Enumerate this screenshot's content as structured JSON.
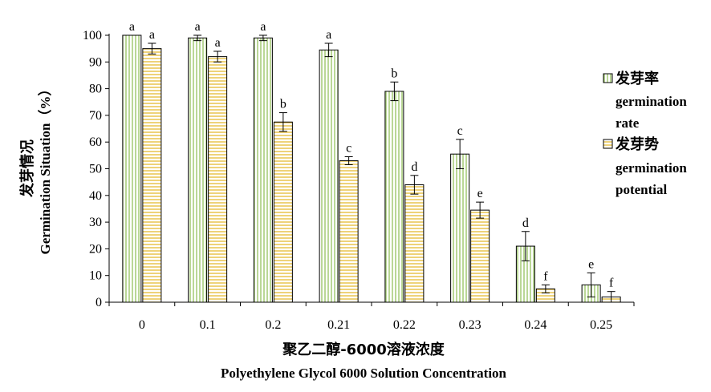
{
  "chart_data": {
    "type": "bar",
    "categories": [
      "0",
      "0.1",
      "0.2",
      "0.21",
      "0.22",
      "0.23",
      "0.24",
      "0.25"
    ],
    "series": [
      {
        "name": "发芽率 germination rate",
        "legend_cn": "发芽率",
        "legend_en_lines": [
          "germination",
          "rate"
        ],
        "values": [
          100,
          99,
          99,
          94.5,
          79,
          55.5,
          21,
          6.5
        ],
        "errors": [
          0,
          1,
          1,
          2.5,
          3.5,
          5.5,
          5.5,
          4.5
        ],
        "letters": [
          "a",
          "a",
          "a",
          "a",
          "b",
          "c",
          "d",
          "e"
        ],
        "color": "#c6e2a8",
        "hatch": "vertical"
      },
      {
        "name": "发芽势 germination potential",
        "legend_cn": "发芽势",
        "legend_en_lines": [
          "germination",
          "potential"
        ],
        "values": [
          95,
          92,
          67.5,
          53,
          44,
          34.5,
          5,
          2
        ],
        "errors": [
          2,
          2,
          3.5,
          1.5,
          3.5,
          3,
          1.5,
          2
        ],
        "letters": [
          "a",
          "a",
          "b",
          "c",
          "d",
          "e",
          "f",
          "f"
        ],
        "color": "#f5d870",
        "hatch": "horizontal"
      }
    ],
    "ylabel_cn": "发芽情况",
    "ylabel_en": "Germination Situation（%）",
    "xlabel_cn": "聚乙二醇-6000溶液浓度",
    "xlabel_en": "Polyethylene Glycol 6000 Solution Concentration",
    "ylim": [
      0,
      100
    ],
    "yticks": [
      "0",
      "10",
      "20",
      "30",
      "40",
      "50",
      "60",
      "70",
      "80",
      "90",
      "100"
    ],
    "grid": false,
    "legend_position": "right"
  }
}
